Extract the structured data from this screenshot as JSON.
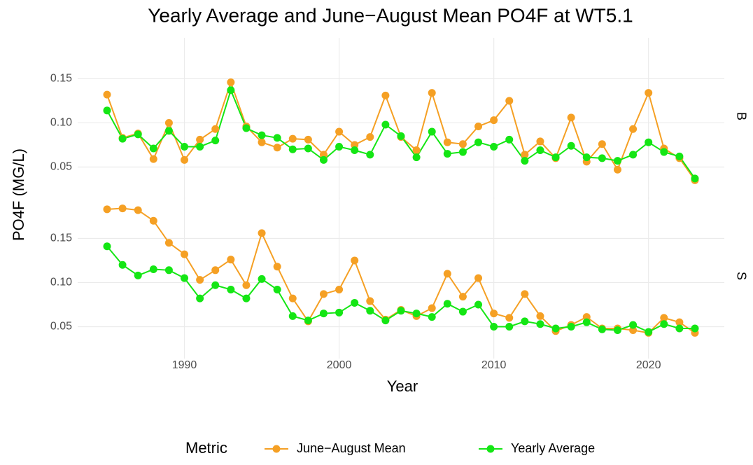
{
  "chart_data": {
    "type": "line",
    "title": "Yearly Average and June−August Mean PO4F at WT5.1",
    "x_label": "Year",
    "y_label": "PO4F  (MG/L)",
    "legend_title": "Metric",
    "grid": true,
    "x": [
      1985,
      1986,
      1987,
      1988,
      1989,
      1990,
      1991,
      1992,
      1993,
      1994,
      1995,
      1996,
      1997,
      1998,
      1999,
      2000,
      2001,
      2002,
      2003,
      2004,
      2005,
      2006,
      2007,
      2008,
      2009,
      2010,
      2011,
      2012,
      2013,
      2014,
      2015,
      2016,
      2017,
      2018,
      2019,
      2020,
      2021,
      2022,
      2023
    ],
    "xlim": [
      1983.1,
      2024.9
    ],
    "xticks": [
      1990,
      2000,
      2010,
      2020
    ],
    "ylim": [
      0.025,
      0.19
    ],
    "yticks": [
      0.05,
      {
        "value": 0.1,
        "label": "0.10"
      },
      0.15
    ],
    "series": [
      {
        "name": "June−August Mean",
        "color": "#f5a024"
      },
      {
        "name": "Yearly Average",
        "color": "#14e614"
      }
    ],
    "panels": [
      {
        "label": "B",
        "values": [
          [
            0.132,
            0.083,
            0.088,
            0.059,
            0.1,
            0.058,
            0.081,
            0.093,
            0.146,
            0.096,
            0.078,
            0.072,
            0.082,
            0.081,
            0.064,
            0.09,
            0.075,
            0.084,
            0.131,
            0.084,
            0.069,
            0.134,
            0.078,
            0.076,
            0.096,
            0.103,
            0.125,
            0.064,
            0.079,
            0.06,
            0.106,
            0.056,
            0.076,
            0.047,
            0.093,
            0.134,
            0.071,
            0.06,
            0.035
          ],
          [
            0.114,
            0.082,
            0.087,
            0.071,
            0.091,
            0.073,
            0.073,
            0.08,
            0.137,
            0.094,
            0.086,
            0.083,
            0.07,
            0.071,
            0.058,
            0.073,
            0.069,
            0.064,
            0.098,
            0.085,
            0.061,
            0.09,
            0.065,
            0.067,
            0.078,
            0.073,
            0.081,
            0.057,
            0.069,
            0.061,
            0.074,
            0.061,
            0.06,
            0.057,
            0.064,
            0.078,
            0.067,
            0.062,
            0.037
          ]
        ]
      },
      {
        "label": "S",
        "values": [
          [
            0.183,
            0.184,
            0.182,
            0.17,
            0.145,
            0.132,
            0.103,
            0.114,
            0.126,
            0.097,
            0.156,
            0.118,
            0.082,
            0.056,
            0.087,
            0.092,
            0.125,
            0.079,
            0.058,
            0.069,
            0.062,
            0.071,
            0.11,
            0.084,
            0.105,
            0.065,
            0.06,
            0.087,
            0.062,
            0.045,
            0.052,
            0.061,
            0.048,
            0.048,
            0.046,
            0.043,
            0.06,
            0.055,
            0.043
          ],
          [
            0.141,
            0.12,
            0.108,
            0.115,
            0.114,
            0.105,
            0.082,
            0.097,
            0.092,
            0.082,
            0.104,
            0.092,
            0.062,
            0.057,
            0.065,
            0.066,
            0.077,
            0.068,
            0.057,
            0.068,
            0.065,
            0.061,
            0.076,
            0.067,
            0.075,
            0.05,
            0.05,
            0.056,
            0.053,
            0.048,
            0.05,
            0.055,
            0.047,
            0.046,
            0.052,
            0.044,
            0.053,
            0.048,
            0.048
          ]
        ]
      }
    ]
  }
}
